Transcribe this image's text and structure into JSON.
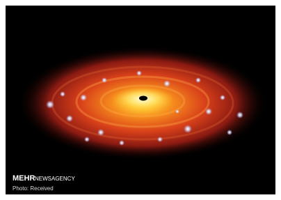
{
  "watermark": {
    "brand": "MEHR",
    "agency": "NEWSAGENCY",
    "credit": "Photo: Received"
  }
}
